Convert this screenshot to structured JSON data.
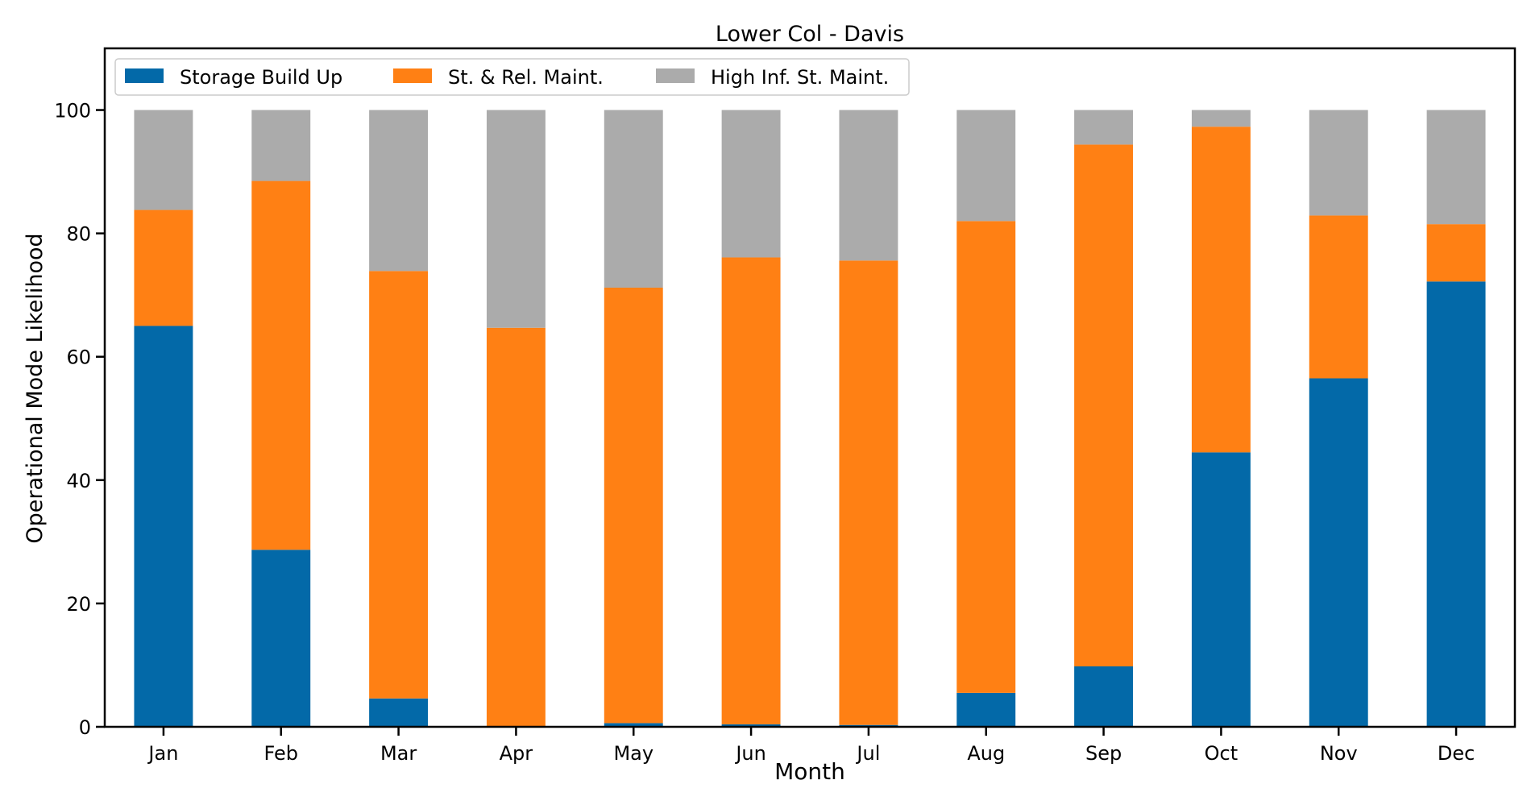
{
  "chart_data": {
    "type": "bar",
    "stacked": true,
    "title": "Lower Col - Davis",
    "xlabel": "Month",
    "ylabel": "Operational Mode Likelihood",
    "ylim": [
      0,
      110
    ],
    "yticks": [
      0,
      20,
      40,
      60,
      80,
      100
    ],
    "categories": [
      "Jan",
      "Feb",
      "Mar",
      "Apr",
      "May",
      "Jun",
      "Jul",
      "Aug",
      "Sep",
      "Oct",
      "Nov",
      "Dec"
    ],
    "series": [
      {
        "name": "Storage Build Up",
        "color": "#0369a8",
        "values": [
          65.0,
          28.7,
          4.6,
          0.0,
          0.6,
          0.4,
          0.3,
          5.5,
          9.8,
          44.5,
          56.5,
          72.2
        ]
      },
      {
        "name": "St. & Rel. Maint.",
        "color": "#ff8014",
        "values": [
          18.8,
          59.8,
          69.3,
          64.7,
          70.6,
          75.7,
          75.3,
          76.5,
          84.6,
          52.8,
          26.4,
          9.3
        ]
      },
      {
        "name": "High Inf. St. Maint.",
        "color": "#ababab",
        "values": [
          16.2,
          11.5,
          26.1,
          35.3,
          28.8,
          23.9,
          24.4,
          18.0,
          5.6,
          2.7,
          17.1,
          18.5
        ]
      }
    ],
    "legend": {
      "position": "top-left",
      "columns": 3
    },
    "grid": false
  }
}
